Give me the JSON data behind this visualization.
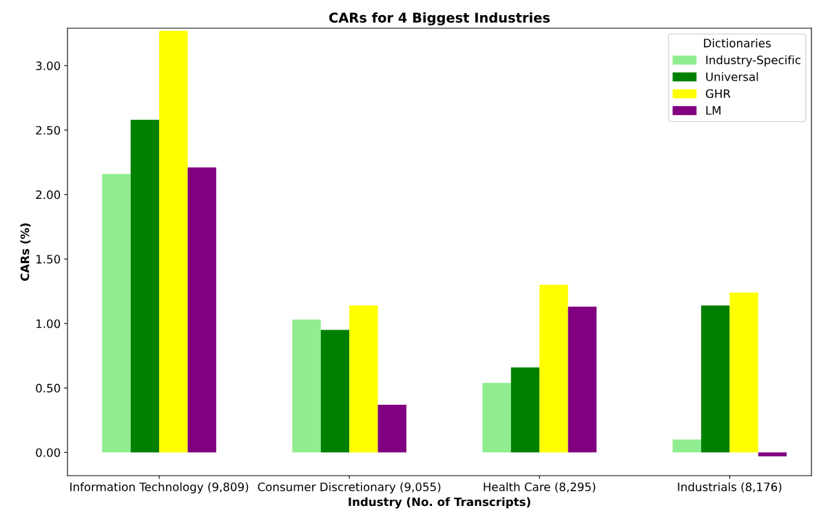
{
  "chart_data": {
    "type": "bar",
    "title": "CARs for 4 Biggest Industries",
    "xlabel": "Industry (No. of Transcripts)",
    "ylabel": "CARs (%)",
    "legend_title": "Dictionaries",
    "categories": [
      "Information Technology (9,809)",
      "Consumer Discretionary (9,055)",
      "Health Care (8,295)",
      "Industrials (8,176)"
    ],
    "series": [
      {
        "name": "Industry-Specific",
        "color": "#90ee90",
        "values": [
          2.16,
          1.03,
          0.54,
          0.1
        ]
      },
      {
        "name": "Universal",
        "color": "#008000",
        "values": [
          2.58,
          0.95,
          0.66,
          1.14
        ]
      },
      {
        "name": "GHR",
        "color": "#ffff00",
        "values": [
          3.27,
          1.14,
          1.3,
          1.24
        ]
      },
      {
        "name": "LM",
        "color": "#800080",
        "values": [
          2.21,
          0.37,
          1.13,
          -0.03
        ]
      }
    ],
    "ylim": [
      -0.18,
      3.29
    ],
    "yticks": [
      {
        "value": 0,
        "label": "0.00"
      },
      {
        "value": 0.5,
        "label": "0.50"
      },
      {
        "value": 1,
        "label": "1.00"
      },
      {
        "value": 1.5,
        "label": "1.50"
      },
      {
        "value": 2,
        "label": "2.00"
      },
      {
        "value": 2.5,
        "label": "2.50"
      },
      {
        "value": 3,
        "label": "3.00"
      }
    ],
    "legend": "top right",
    "grid": false
  }
}
